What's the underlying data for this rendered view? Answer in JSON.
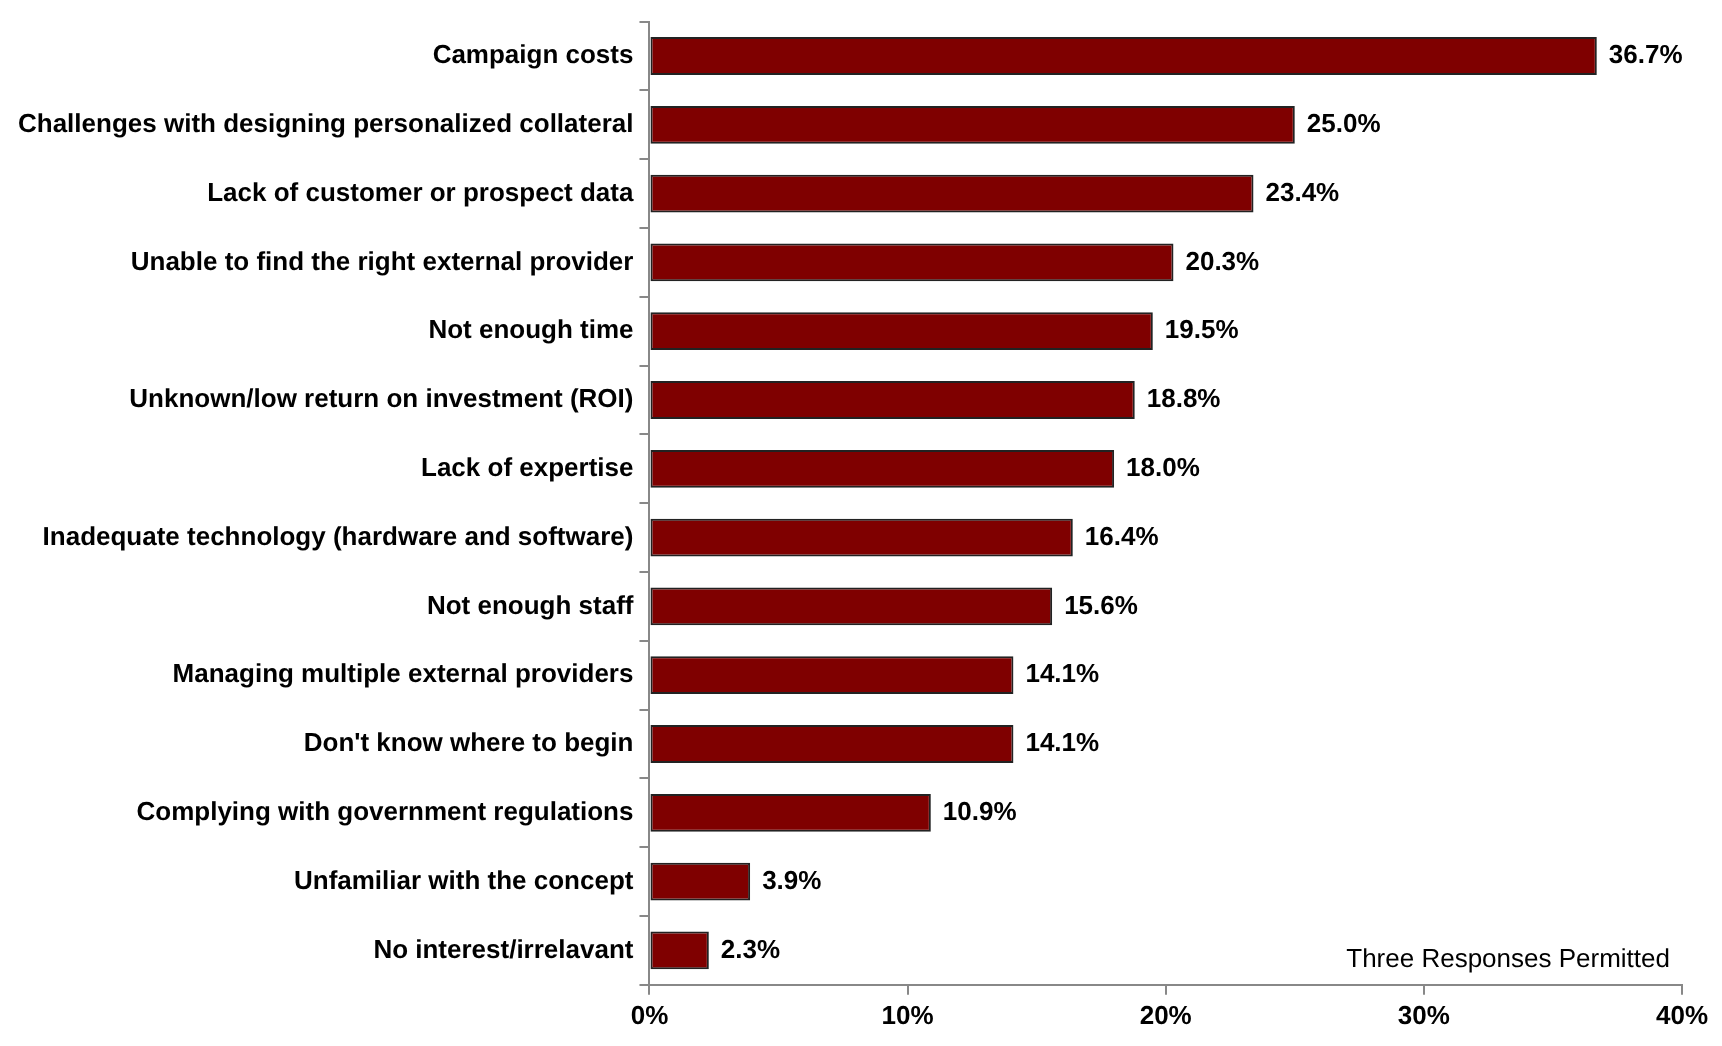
{
  "chart_data": {
    "type": "bar",
    "orientation": "horizontal",
    "color": "#7f0000",
    "categories": [
      "Campaign costs",
      "Challenges with designing personalized collateral",
      "Lack of customer or prospect data",
      "Unable to find the right external provider",
      "Not enough time",
      "Unknown/low return on investment (ROI)",
      "Lack of expertise",
      "Inadequate technology (hardware and software)",
      "Not enough staff",
      "Managing multiple external providers",
      "Don't know where to begin",
      "Complying with government regulations",
      "Unfamiliar with the concept",
      "No interest/irrelavant"
    ],
    "values": [
      36.7,
      25.0,
      23.4,
      20.3,
      19.5,
      18.8,
      18.0,
      16.4,
      15.6,
      14.1,
      14.1,
      10.9,
      3.9,
      2.3
    ],
    "value_labels": [
      "36.7%",
      "25.0%",
      "23.4%",
      "20.3%",
      "19.5%",
      "18.8%",
      "18.0%",
      "16.4%",
      "15.6%",
      "14.1%",
      "14.1%",
      "10.9%",
      "3.9%",
      "2.3%"
    ],
    "xlim": [
      0,
      40
    ],
    "xticks": [
      {
        "value": 0,
        "label": "0%"
      },
      {
        "value": 10,
        "label": "10%"
      },
      {
        "value": 20,
        "label": "20%"
      },
      {
        "value": 30,
        "label": "30%"
      },
      {
        "value": 40,
        "label": "40%"
      }
    ],
    "annotations": [
      "Three Responses Permitted"
    ],
    "grid": false,
    "legend": false
  }
}
